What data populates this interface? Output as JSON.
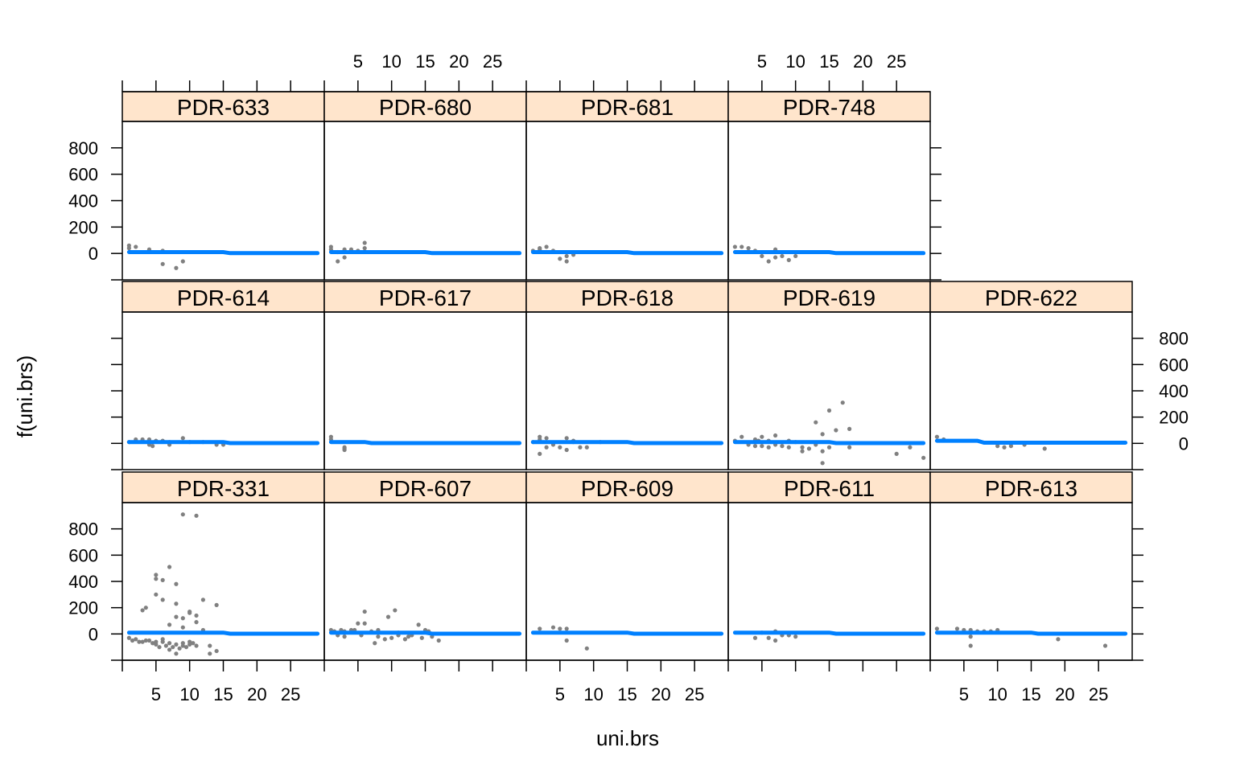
{
  "chart_data": {
    "type": "scatter",
    "layout": "lattice-trellis",
    "xlabel": "uni.brs",
    "ylabel": "f(uni.brs)",
    "x_ticks": [
      5,
      10,
      15,
      20,
      25
    ],
    "y_ticks": [
      0,
      200,
      400,
      600,
      800
    ],
    "xlim": [
      0,
      30
    ],
    "ylim": [
      -200,
      1000
    ],
    "colors": {
      "strip": "#ffe5cc",
      "points": "#808080",
      "fit": "#0080ff"
    },
    "panels": [
      {
        "name": "PDR-331",
        "points": [
          [
            1,
            -30
          ],
          [
            1.5,
            -50
          ],
          [
            2,
            -40
          ],
          [
            2.5,
            -60
          ],
          [
            3,
            -60
          ],
          [
            3,
            180
          ],
          [
            3.5,
            -50
          ],
          [
            3.5,
            200
          ],
          [
            4,
            -50
          ],
          [
            4.5,
            -70
          ],
          [
            5,
            -80
          ],
          [
            5,
            450
          ],
          [
            5,
            420
          ],
          [
            5,
            300
          ],
          [
            5,
            -60
          ],
          [
            5.5,
            -100
          ],
          [
            6,
            -40
          ],
          [
            6,
            -60
          ],
          [
            6,
            410
          ],
          [
            6,
            260
          ],
          [
            6.5,
            -90
          ],
          [
            7,
            -120
          ],
          [
            7,
            510
          ],
          [
            7,
            70
          ],
          [
            7,
            -70
          ],
          [
            7.5,
            -100
          ],
          [
            8,
            -80
          ],
          [
            8,
            380
          ],
          [
            8,
            230
          ],
          [
            8,
            130
          ],
          [
            8,
            -150
          ],
          [
            8.5,
            -110
          ],
          [
            9,
            120
          ],
          [
            9,
            50
          ],
          [
            9,
            -90
          ],
          [
            9,
            -70
          ],
          [
            9,
            910
          ],
          [
            9.5,
            -100
          ],
          [
            10,
            170
          ],
          [
            10,
            -80
          ],
          [
            10,
            -60
          ],
          [
            10,
            160
          ],
          [
            10.5,
            -70
          ],
          [
            11,
            900
          ],
          [
            11,
            140
          ],
          [
            11,
            90
          ],
          [
            11,
            -90
          ],
          [
            12,
            260
          ],
          [
            12,
            30
          ],
          [
            13,
            -90
          ],
          [
            13,
            -150
          ],
          [
            14,
            -130
          ],
          [
            14,
            220
          ]
        ],
        "fit": [
          [
            1,
            10
          ],
          [
            15,
            10
          ],
          [
            16,
            2
          ],
          [
            29,
            2
          ]
        ]
      },
      {
        "name": "PDR-607",
        "points": [
          [
            1,
            30
          ],
          [
            1.5,
            20
          ],
          [
            2,
            -10
          ],
          [
            2.5,
            30
          ],
          [
            3,
            20
          ],
          [
            3,
            -20
          ],
          [
            4,
            30
          ],
          [
            4.5,
            30
          ],
          [
            5,
            80
          ],
          [
            5.5,
            -10
          ],
          [
            6,
            170
          ],
          [
            6,
            80
          ],
          [
            7,
            20
          ],
          [
            7.5,
            -70
          ],
          [
            8,
            30
          ],
          [
            8,
            -20
          ],
          [
            9,
            -40
          ],
          [
            9.5,
            130
          ],
          [
            10,
            -30
          ],
          [
            10.5,
            180
          ],
          [
            11,
            10
          ],
          [
            11,
            -10
          ],
          [
            12,
            -40
          ],
          [
            12.5,
            -20
          ],
          [
            13,
            -10
          ],
          [
            14,
            70
          ],
          [
            14.5,
            -30
          ],
          [
            15,
            30
          ],
          [
            15.5,
            20
          ],
          [
            16,
            -20
          ],
          [
            17,
            -50
          ]
        ],
        "fit": [
          [
            1,
            10
          ],
          [
            15,
            10
          ],
          [
            16,
            2
          ],
          [
            29,
            2
          ]
        ]
      },
      {
        "name": "PDR-609",
        "points": [
          [
            2,
            40
          ],
          [
            4,
            50
          ],
          [
            5,
            40
          ],
          [
            6,
            40
          ],
          [
            6,
            -50
          ],
          [
            9,
            -110
          ]
        ],
        "fit": [
          [
            1,
            10
          ],
          [
            15,
            10
          ],
          [
            16,
            2
          ],
          [
            29,
            2
          ]
        ]
      },
      {
        "name": "PDR-611",
        "points": [
          [
            4,
            -30
          ],
          [
            5,
            10
          ],
          [
            6,
            -30
          ],
          [
            7,
            20
          ],
          [
            7,
            -50
          ],
          [
            8,
            -10
          ],
          [
            9,
            -10
          ],
          [
            10,
            -20
          ]
        ],
        "fit": [
          [
            1,
            10
          ],
          [
            15,
            10
          ],
          [
            16,
            2
          ],
          [
            29,
            2
          ]
        ]
      },
      {
        "name": "PDR-613",
        "points": [
          [
            1,
            40
          ],
          [
            4,
            40
          ],
          [
            5,
            30
          ],
          [
            6,
            30
          ],
          [
            6,
            -20
          ],
          [
            6,
            -90
          ],
          [
            7,
            20
          ],
          [
            8,
            20
          ],
          [
            9,
            20
          ],
          [
            10,
            30
          ],
          [
            19,
            -40
          ],
          [
            26,
            -90
          ]
        ],
        "fit": [
          [
            1,
            10
          ],
          [
            15,
            10
          ],
          [
            16,
            2
          ],
          [
            29,
            2
          ]
        ]
      },
      {
        "name": "PDR-614",
        "points": [
          [
            1,
            10
          ],
          [
            2,
            30
          ],
          [
            3,
            20
          ],
          [
            3,
            30
          ],
          [
            4,
            -10
          ],
          [
            4,
            30
          ],
          [
            4.5,
            -20
          ],
          [
            5,
            20
          ],
          [
            6,
            20
          ],
          [
            7,
            10
          ],
          [
            7,
            -10
          ],
          [
            9,
            40
          ],
          [
            10,
            10
          ],
          [
            12,
            10
          ],
          [
            14,
            -10
          ],
          [
            15,
            -10
          ]
        ],
        "fit": [
          [
            1,
            10
          ],
          [
            15,
            10
          ],
          [
            16,
            2
          ],
          [
            29,
            2
          ]
        ]
      },
      {
        "name": "PDR-617",
        "points": [
          [
            1,
            50
          ],
          [
            1,
            30
          ],
          [
            3,
            -30
          ],
          [
            3,
            -50
          ],
          [
            3,
            -40
          ]
        ],
        "fit": [
          [
            1,
            10
          ],
          [
            6,
            10
          ],
          [
            7,
            2
          ],
          [
            29,
            2
          ]
        ]
      },
      {
        "name": "PDR-618",
        "points": [
          [
            1,
            10
          ],
          [
            2,
            50
          ],
          [
            2,
            30
          ],
          [
            2,
            -80
          ],
          [
            3,
            40
          ],
          [
            3,
            -30
          ],
          [
            4,
            -10
          ],
          [
            5,
            -30
          ],
          [
            6,
            40
          ],
          [
            6,
            -50
          ],
          [
            7,
            20
          ],
          [
            7,
            10
          ],
          [
            8,
            -30
          ],
          [
            9,
            -30
          ],
          [
            11,
            10
          ]
        ],
        "fit": [
          [
            1,
            10
          ],
          [
            15,
            10
          ],
          [
            16,
            2
          ],
          [
            29,
            2
          ]
        ]
      },
      {
        "name": "PDR-619",
        "points": [
          [
            1,
            20
          ],
          [
            2,
            50
          ],
          [
            3,
            -10
          ],
          [
            4,
            30
          ],
          [
            4,
            -20
          ],
          [
            4.5,
            20
          ],
          [
            5,
            50
          ],
          [
            5,
            -20
          ],
          [
            6,
            20
          ],
          [
            6,
            -30
          ],
          [
            7,
            60
          ],
          [
            7,
            -10
          ],
          [
            8,
            -20
          ],
          [
            9,
            20
          ],
          [
            9,
            -30
          ],
          [
            10,
            10
          ],
          [
            11,
            -30
          ],
          [
            11,
            -60
          ],
          [
            12,
            -40
          ],
          [
            13,
            -10
          ],
          [
            13,
            160
          ],
          [
            14,
            -60
          ],
          [
            14,
            70
          ],
          [
            14,
            -150
          ],
          [
            15,
            -30
          ],
          [
            15,
            250
          ],
          [
            16,
            100
          ],
          [
            17,
            310
          ],
          [
            18,
            110
          ],
          [
            18,
            -30
          ],
          [
            25,
            -80
          ],
          [
            27,
            -30
          ],
          [
            29,
            -110
          ]
        ],
        "fit": [
          [
            1,
            10
          ],
          [
            15,
            10
          ],
          [
            16,
            2
          ],
          [
            29,
            2
          ]
        ]
      },
      {
        "name": "PDR-622",
        "points": [
          [
            1,
            50
          ],
          [
            2,
            30
          ],
          [
            10,
            -20
          ],
          [
            11,
            -30
          ],
          [
            12,
            -20
          ],
          [
            14,
            -10
          ],
          [
            17,
            -40
          ]
        ],
        "fit": [
          [
            1,
            20
          ],
          [
            7,
            20
          ],
          [
            8,
            5
          ],
          [
            29,
            5
          ]
        ]
      },
      {
        "name": "PDR-633",
        "points": [
          [
            1,
            60
          ],
          [
            1,
            40
          ],
          [
            2,
            50
          ],
          [
            4,
            30
          ],
          [
            6,
            20
          ],
          [
            6,
            -80
          ],
          [
            8,
            -110
          ],
          [
            9,
            -60
          ]
        ],
        "fit": [
          [
            1,
            10
          ],
          [
            15,
            10
          ],
          [
            16,
            2
          ],
          [
            29,
            2
          ]
        ]
      },
      {
        "name": "PDR-680",
        "points": [
          [
            1,
            50
          ],
          [
            1,
            30
          ],
          [
            2,
            10
          ],
          [
            2,
            -60
          ],
          [
            3,
            30
          ],
          [
            3,
            -30
          ],
          [
            4,
            30
          ],
          [
            5,
            20
          ],
          [
            6,
            80
          ],
          [
            6,
            40
          ]
        ],
        "fit": [
          [
            1,
            10
          ],
          [
            15,
            10
          ],
          [
            16,
            2
          ],
          [
            29,
            2
          ]
        ]
      },
      {
        "name": "PDR-681",
        "points": [
          [
            1,
            20
          ],
          [
            2,
            40
          ],
          [
            2,
            30
          ],
          [
            3,
            50
          ],
          [
            4,
            20
          ],
          [
            5,
            -40
          ],
          [
            6,
            -60
          ],
          [
            6,
            -20
          ],
          [
            7,
            -10
          ]
        ],
        "fit": [
          [
            1,
            10
          ],
          [
            15,
            10
          ],
          [
            16,
            2
          ],
          [
            29,
            2
          ]
        ]
      },
      {
        "name": "PDR-748",
        "points": [
          [
            1,
            50
          ],
          [
            2,
            50
          ],
          [
            3,
            40
          ],
          [
            4,
            20
          ],
          [
            5,
            -20
          ],
          [
            6,
            -60
          ],
          [
            7,
            30
          ],
          [
            7,
            -30
          ],
          [
            8,
            -20
          ],
          [
            9,
            -50
          ],
          [
            10,
            -20
          ]
        ],
        "fit": [
          [
            1,
            10
          ],
          [
            15,
            10
          ],
          [
            16,
            2
          ],
          [
            29,
            2
          ]
        ]
      }
    ]
  }
}
